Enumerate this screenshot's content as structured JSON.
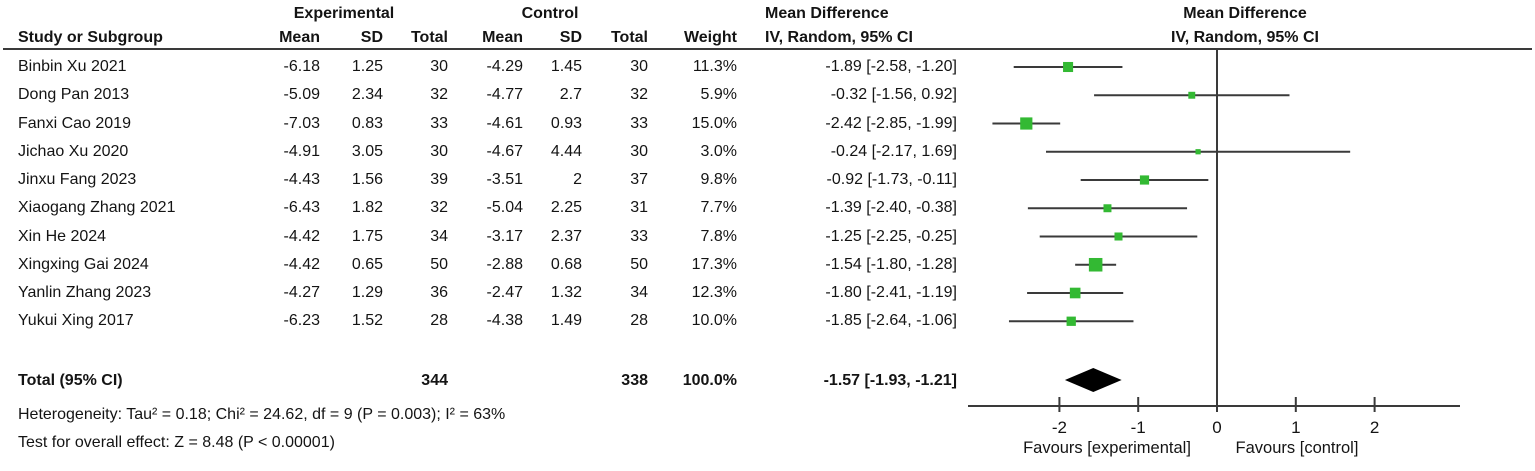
{
  "header": {
    "group_experimental": "Experimental",
    "group_control": "Control",
    "col_study": "Study or Subgroup",
    "col_mean": "Mean",
    "col_sd": "SD",
    "col_total": "Total",
    "col_weight": "Weight",
    "md_title": "Mean Difference",
    "md_subtitle": "IV, Random, 95% CI"
  },
  "chart_data": {
    "type": "forest",
    "effect_measure": "Mean Difference",
    "method": "IV, Random, 95% CI",
    "axis": {
      "ticks": [
        -2,
        -1,
        0,
        1,
        2
      ],
      "xmin": -3.15,
      "xmax": 3.1,
      "zero_line": 0
    },
    "favours_left": "Favours [experimental]",
    "favours_right": "Favours [control]",
    "colors": {
      "marker": "#33b933",
      "line": "#3a3a3a",
      "diamond": "#000000",
      "text": "#141414"
    },
    "studies": [
      {
        "name": "Binbin Xu 2021",
        "mean_e": "-6.18",
        "sd_e": "1.25",
        "total_e": "30",
        "mean_c": "-4.29",
        "sd_c": "1.45",
        "total_c": "30",
        "weight": "11.3%",
        "ci_text": "-1.89 [-2.58, -1.20]",
        "est": -1.89,
        "lo": -2.58,
        "hi": -1.2,
        "w": 11.3
      },
      {
        "name": "Dong Pan 2013",
        "mean_e": "-5.09",
        "sd_e": "2.34",
        "total_e": "32",
        "mean_c": "-4.77",
        "sd_c": "2.7",
        "total_c": "32",
        "weight": "5.9%",
        "ci_text": "-0.32 [-1.56, 0.92]",
        "est": -0.32,
        "lo": -1.56,
        "hi": 0.92,
        "w": 5.9
      },
      {
        "name": "Fanxi Cao 2019",
        "mean_e": "-7.03",
        "sd_e": "0.83",
        "total_e": "33",
        "mean_c": "-4.61",
        "sd_c": "0.93",
        "total_c": "33",
        "weight": "15.0%",
        "ci_text": "-2.42 [-2.85, -1.99]",
        "est": -2.42,
        "lo": -2.85,
        "hi": -1.99,
        "w": 15.0
      },
      {
        "name": "Jichao Xu 2020",
        "mean_e": "-4.91",
        "sd_e": "3.05",
        "total_e": "30",
        "mean_c": "-4.67",
        "sd_c": "4.44",
        "total_c": "30",
        "weight": "3.0%",
        "ci_text": "-0.24 [-2.17, 1.69]",
        "est": -0.24,
        "lo": -2.17,
        "hi": 1.69,
        "w": 3.0
      },
      {
        "name": "Jinxu Fang 2023",
        "mean_e": "-4.43",
        "sd_e": "1.56",
        "total_e": "39",
        "mean_c": "-3.51",
        "sd_c": "2",
        "total_c": "37",
        "weight": "9.8%",
        "ci_text": "-0.92 [-1.73, -0.11]",
        "est": -0.92,
        "lo": -1.73,
        "hi": -0.11,
        "w": 9.8
      },
      {
        "name": "Xiaogang Zhang 2021",
        "mean_e": "-6.43",
        "sd_e": "1.82",
        "total_e": "32",
        "mean_c": "-5.04",
        "sd_c": "2.25",
        "total_c": "31",
        "weight": "7.7%",
        "ci_text": "-1.39 [-2.40, -0.38]",
        "est": -1.39,
        "lo": -2.4,
        "hi": -0.38,
        "w": 7.7
      },
      {
        "name": "Xin He 2024",
        "mean_e": "-4.42",
        "sd_e": "1.75",
        "total_e": "34",
        "mean_c": "-3.17",
        "sd_c": "2.37",
        "total_c": "33",
        "weight": "7.8%",
        "ci_text": "-1.25 [-2.25, -0.25]",
        "est": -1.25,
        "lo": -2.25,
        "hi": -0.25,
        "w": 7.8
      },
      {
        "name": "Xingxing Gai 2024",
        "mean_e": "-4.42",
        "sd_e": "0.65",
        "total_e": "50",
        "mean_c": "-2.88",
        "sd_c": "0.68",
        "total_c": "50",
        "weight": "17.3%",
        "ci_text": "-1.54 [-1.80, -1.28]",
        "est": -1.54,
        "lo": -1.8,
        "hi": -1.28,
        "w": 17.3
      },
      {
        "name": "Yanlin Zhang 2023",
        "mean_e": "-4.27",
        "sd_e": "1.29",
        "total_e": "36",
        "mean_c": "-2.47",
        "sd_c": "1.32",
        "total_c": "34",
        "weight": "12.3%",
        "ci_text": "-1.80 [-2.41, -1.19]",
        "est": -1.8,
        "lo": -2.41,
        "hi": -1.19,
        "w": 12.3
      },
      {
        "name": "Yukui Xing 2017",
        "mean_e": "-6.23",
        "sd_e": "1.52",
        "total_e": "28",
        "mean_c": "-4.38",
        "sd_c": "1.49",
        "total_c": "28",
        "weight": "10.0%",
        "ci_text": "-1.85 [-2.64, -1.06]",
        "est": -1.85,
        "lo": -2.64,
        "hi": -1.06,
        "w": 10.0
      }
    ],
    "total": {
      "label": "Total (95% CI)",
      "total_e": "344",
      "total_c": "338",
      "weight": "100.0%",
      "ci_text": "-1.57 [-1.93, -1.21]",
      "est": -1.57,
      "lo": -1.93,
      "hi": -1.21
    },
    "heterogeneity": "Heterogeneity: Tau² = 0.18; Chi² = 24.62, df = 9 (P = 0.003); I² = 63%",
    "overall_effect": "Test for overall effect: Z = 8.48 (P < 0.00001)"
  }
}
